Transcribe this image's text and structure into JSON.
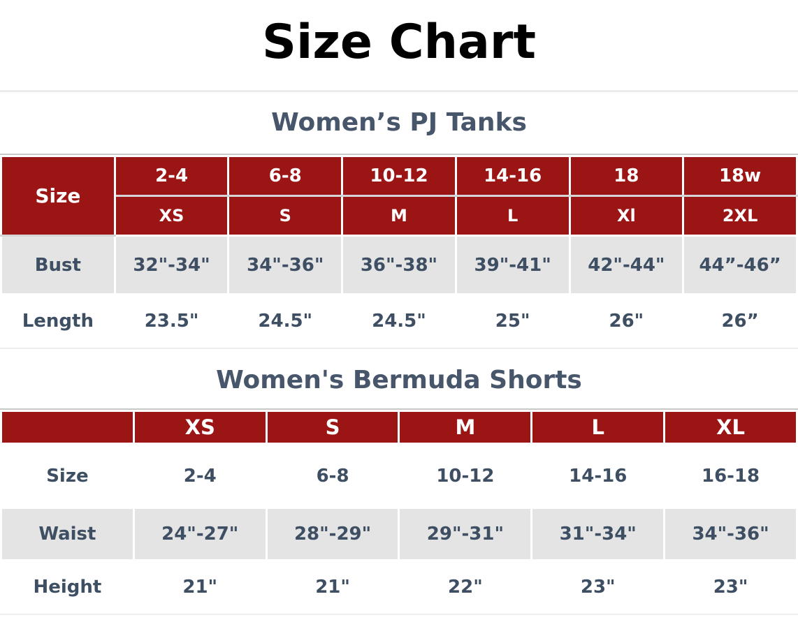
{
  "page": {
    "title": "Size Chart"
  },
  "colors": {
    "header_red": "#9b1515",
    "row_gray": "#e4e4e4",
    "heading_slate": "#47566a",
    "cell_text": "#3e4f63",
    "rule_gray": "#ebebeb"
  },
  "tables": [
    {
      "heading": "Women’s PJ Tanks",
      "corner_label": "Size",
      "header_rows": [
        [
          "2-4",
          "6-8",
          "10-12",
          "14-16",
          "18",
          "18w"
        ],
        [
          "XS",
          "S",
          "M",
          "L",
          "Xl",
          "2XL"
        ]
      ],
      "rows": [
        {
          "label": "Bust",
          "values": [
            "32\"-34\"",
            "34\"-36\"",
            "36\"-38\"",
            "39\"-41\"",
            "42\"-44\"",
            "44”-46”"
          ]
        },
        {
          "label": "Length",
          "values": [
            "23.5\"",
            "24.5\"",
            "24.5\"",
            "25\"",
            "26\"",
            "26”"
          ]
        }
      ]
    },
    {
      "heading": "Women's Bermuda Shorts",
      "corner_label": "",
      "header_cells": [
        "XS",
        "S",
        "M",
        "L",
        "XL"
      ],
      "rows": [
        {
          "label": "Size",
          "values": [
            "2-4",
            "6-8",
            "10-12",
            "14-16",
            "16-18"
          ]
        },
        {
          "label": "Waist",
          "values": [
            "24\"-27\"",
            "28\"-29\"",
            "29\"-31\"",
            "31\"-34\"",
            "34\"-36\""
          ]
        },
        {
          "label": "Height",
          "values": [
            "21\"",
            "21\"",
            "22\"",
            "23\"",
            "23\""
          ]
        }
      ]
    }
  ]
}
